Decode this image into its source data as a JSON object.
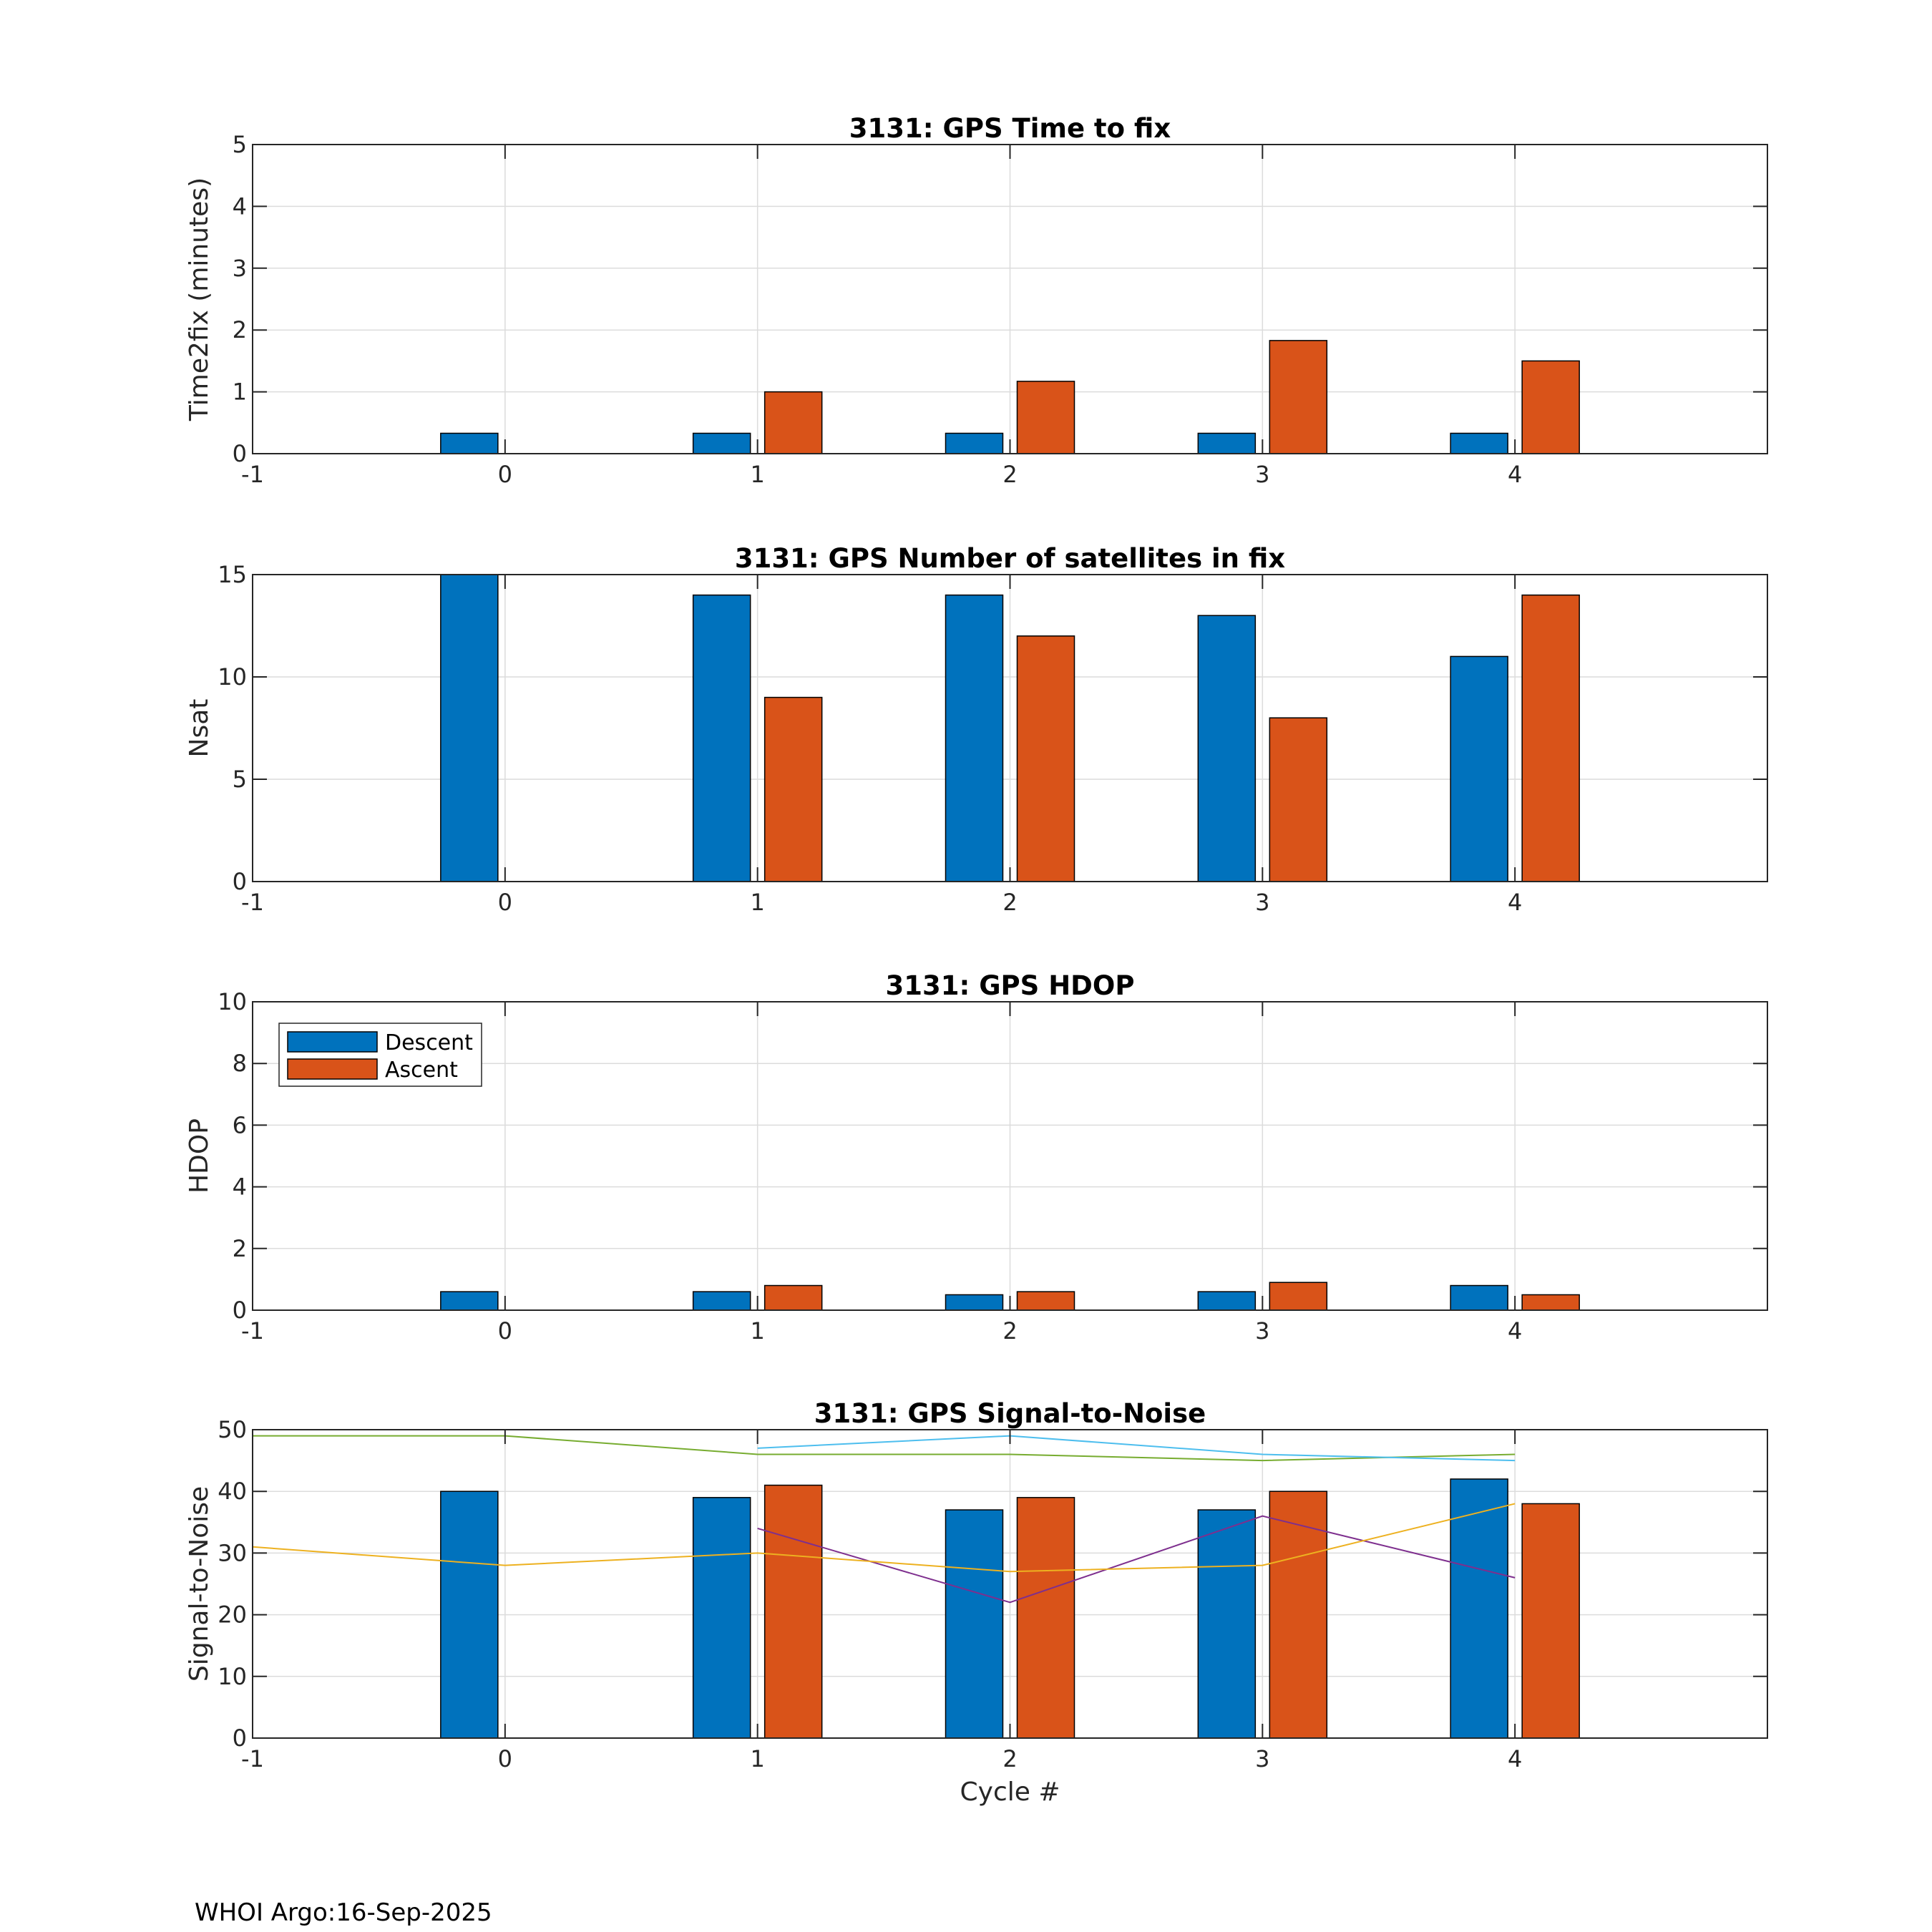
{
  "colors": {
    "descent": "#0072BD",
    "ascent": "#D95319",
    "snr_green": "#77AC30",
    "snr_cyan": "#4DBEEE",
    "snr_purple": "#7E2F8E",
    "snr_yellow": "#EDB120"
  },
  "footer": "WHOI Argo:16-Sep-2025",
  "legend": {
    "descent": "Descent",
    "ascent": "Ascent"
  },
  "shared_xlabel": "Cycle #",
  "chart_data": [
    {
      "type": "bar",
      "title": "3131: GPS Time to fix",
      "xlabel": "",
      "ylabel": "Time2fix (minutes)",
      "xlim": [
        -1,
        5
      ],
      "ylim": [
        0,
        5
      ],
      "xticks": [
        "-1",
        "0",
        "1",
        "2",
        "3",
        "4"
      ],
      "yticks": [
        "0",
        "1",
        "2",
        "3",
        "4",
        "5"
      ],
      "grid": true,
      "series": [
        {
          "name": "Descent",
          "x": [
            0,
            1,
            2,
            3,
            4
          ],
          "values": [
            0.33,
            0.33,
            0.33,
            0.33,
            0.33
          ]
        },
        {
          "name": "Ascent",
          "x": [
            1,
            2,
            3,
            4
          ],
          "values": [
            1.0,
            1.17,
            1.83,
            1.5
          ]
        }
      ]
    },
    {
      "type": "bar",
      "title": "3131: GPS Number of satellites in fix",
      "xlabel": "",
      "ylabel": "Nsat",
      "xlim": [
        -1,
        5
      ],
      "ylim": [
        0,
        15
      ],
      "xticks": [
        "-1",
        "0",
        "1",
        "2",
        "3",
        "4"
      ],
      "yticks": [
        "0",
        "5",
        "10",
        "15"
      ],
      "grid": true,
      "series": [
        {
          "name": "Descent",
          "x": [
            0,
            1,
            2,
            3,
            4
          ],
          "values": [
            15,
            14,
            14,
            13,
            11
          ]
        },
        {
          "name": "Ascent",
          "x": [
            1,
            2,
            3,
            4
          ],
          "values": [
            9,
            12,
            8,
            14
          ]
        }
      ]
    },
    {
      "type": "bar",
      "title": "3131: GPS HDOP",
      "xlabel": "",
      "ylabel": "HDOP",
      "xlim": [
        -1,
        5
      ],
      "ylim": [
        0,
        10
      ],
      "xticks": [
        "-1",
        "0",
        "1",
        "2",
        "3",
        "4"
      ],
      "yticks": [
        "0",
        "2",
        "4",
        "6",
        "8",
        "10"
      ],
      "grid": true,
      "legend": "top-left",
      "series": [
        {
          "name": "Descent",
          "x": [
            0,
            1,
            2,
            3,
            4
          ],
          "values": [
            0.6,
            0.6,
            0.5,
            0.6,
            0.8
          ]
        },
        {
          "name": "Ascent",
          "x": [
            1,
            2,
            3,
            4
          ],
          "values": [
            0.8,
            0.6,
            0.9,
            0.5
          ]
        }
      ]
    },
    {
      "type": "bar",
      "title": "3131: GPS Signal-to-Noise",
      "xlabel": "Cycle #",
      "ylabel": "Signal-to-Noise",
      "xlim": [
        -1,
        5
      ],
      "ylim": [
        0,
        50
      ],
      "xticks": [
        "-1",
        "0",
        "1",
        "2",
        "3",
        "4"
      ],
      "yticks": [
        "0",
        "10",
        "20",
        "30",
        "40",
        "50"
      ],
      "grid": true,
      "series": [
        {
          "name": "Descent",
          "x": [
            0,
            1,
            2,
            3,
            4
          ],
          "values": [
            40,
            39,
            37,
            37,
            42
          ]
        },
        {
          "name": "Ascent",
          "x": [
            1,
            2,
            3,
            4
          ],
          "values": [
            41,
            39,
            40,
            38
          ]
        }
      ],
      "lines": [
        {
          "color_key": "snr_green",
          "x": [
            -1,
            0,
            1,
            2,
            3,
            4
          ],
          "values": [
            49,
            49,
            46,
            46,
            45,
            46
          ]
        },
        {
          "color_key": "snr_cyan",
          "x": [
            1,
            2,
            3,
            4
          ],
          "values": [
            47,
            49,
            46,
            45
          ]
        },
        {
          "color_key": "snr_purple",
          "x": [
            1,
            2,
            3,
            4
          ],
          "values": [
            34,
            22,
            36,
            26
          ]
        },
        {
          "color_key": "snr_yellow",
          "x": [
            -1,
            0,
            1,
            2,
            3,
            4
          ],
          "values": [
            31,
            28,
            30,
            27,
            28,
            38
          ]
        }
      ]
    }
  ]
}
